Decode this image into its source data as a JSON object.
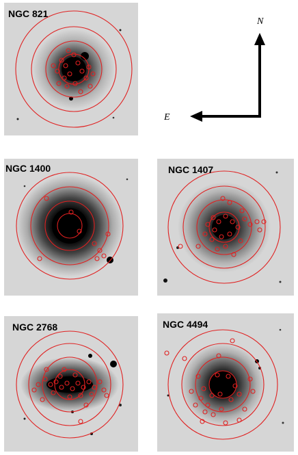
{
  "panels": [
    {
      "label": "NGC 821"
    },
    {
      "label": "NGC 1400"
    },
    {
      "label": "NGC 1407"
    },
    {
      "label": "NGC 2768"
    },
    {
      "label": "NGC 4494"
    }
  ],
  "compass": {
    "north_label": "N",
    "east_label": "E"
  },
  "colors": {
    "overlay": "#e02020",
    "galaxy": "#000000",
    "sky": "#d6d6d6"
  }
}
